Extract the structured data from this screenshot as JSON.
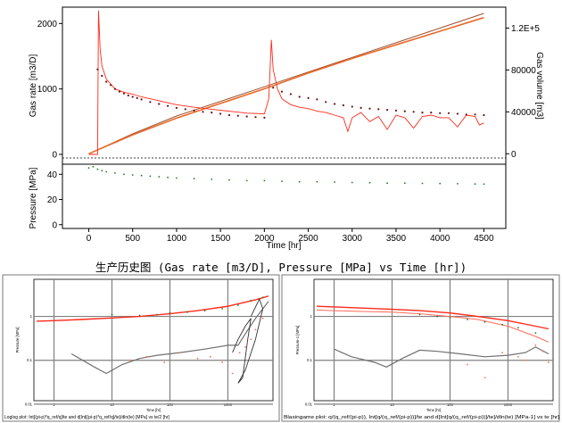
{
  "caption": "生产历史图 (Gas rate [m3/D], Pressure [MPa] vs Time [hr])",
  "colors": {
    "rate_model": "#ff2a1a",
    "rate_points": "#6a1010",
    "volume": "#e86a2a",
    "volume_model": "#a0522d",
    "pressure": "#1b7a2a",
    "derivative": "#ff6a5a",
    "grid": "#808080"
  },
  "chart_data": [
    {
      "type": "line",
      "xlabel": "Time [hr]",
      "ylabel": "Gas rate [m3/D]",
      "y2label": "Gas volume [m3]",
      "xlim": [
        -300,
        4750
      ],
      "ylim": [
        -150,
        2250
      ],
      "y2lim": [
        -10000,
        140000
      ],
      "x_ticks": [
        "0",
        "500",
        "1000",
        "1500",
        "2000",
        "2500",
        "3000",
        "3500",
        "4000",
        "4500"
      ],
      "y_ticks": [
        "0",
        "1000",
        "2000"
      ],
      "y2_ticks": [
        "0",
        "40000",
        "80000",
        "1.2E+5"
      ],
      "series": [
        {
          "role": "rate_model",
          "x": [
            0,
            100,
            110,
            130,
            150,
            200,
            300,
            400,
            500,
            600,
            800,
            1000,
            1200,
            1400,
            1600,
            1800,
            2000,
            2050,
            2080,
            2100,
            2150,
            2200,
            2300,
            2400,
            2500,
            2600,
            2700,
            2800,
            2900,
            2950,
            3000,
            3100,
            3200,
            3300,
            3400,
            3500,
            3600,
            3700,
            3800,
            3900,
            4000,
            4100,
            4200,
            4300,
            4400,
            4450,
            4500
          ],
          "values": [
            0,
            0,
            2200,
            1600,
            1350,
            1150,
            1000,
            950,
            920,
            880,
            820,
            760,
            720,
            690,
            660,
            630,
            620,
            850,
            1750,
            1300,
            1000,
            850,
            760,
            720,
            700,
            660,
            640,
            600,
            560,
            350,
            560,
            640,
            500,
            580,
            380,
            600,
            560,
            400,
            580,
            600,
            560,
            560,
            420,
            600,
            580,
            450,
            480
          ]
        },
        {
          "role": "rate_points",
          "x": [
            100,
            150,
            200,
            250,
            300,
            350,
            400,
            450,
            500,
            550,
            600,
            700,
            800,
            900,
            1000,
            1100,
            1200,
            1300,
            1400,
            1500,
            1600,
            1700,
            1800,
            1900,
            2000,
            2100,
            2200,
            2300,
            2400,
            2500,
            2600,
            2700,
            2800,
            2900,
            3000,
            3100,
            3200,
            3300,
            3400,
            3500,
            3600,
            3700,
            3800,
            3900,
            4000,
            4100,
            4200,
            4300,
            4400,
            4500
          ],
          "values": [
            1300,
            1200,
            1110,
            1060,
            1000,
            960,
            930,
            900,
            880,
            860,
            840,
            800,
            770,
            740,
            710,
            690,
            670,
            650,
            640,
            620,
            600,
            590,
            580,
            570,
            560,
            1020,
            960,
            920,
            880,
            860,
            840,
            800,
            770,
            750,
            730,
            710,
            700,
            690,
            680,
            670,
            660,
            650,
            640,
            640,
            630,
            630,
            620,
            610,
            610,
            600
          ]
        },
        {
          "role": "volume",
          "axis": "y2",
          "x": [
            0,
            500,
            1000,
            1500,
            2000,
            2500,
            3000,
            3500,
            4000,
            4500
          ],
          "values": [
            0,
            18000,
            34000,
            48000,
            62000,
            77000,
            91000,
            104000,
            117000,
            130000
          ]
        },
        {
          "role": "volume_model",
          "axis": "y2",
          "x": [
            0,
            500,
            1000,
            1500,
            2000,
            2500,
            3000,
            3500,
            4000,
            4500
          ],
          "values": [
            0,
            19000,
            36000,
            50000,
            64000,
            78000,
            92000,
            106000,
            120000,
            134000
          ]
        }
      ]
    },
    {
      "type": "scatter",
      "ylabel": "Pressure [MPa]",
      "xlim": [
        -300,
        4750
      ],
      "ylim": [
        -3,
        48
      ],
      "y_ticks": [
        "0",
        "20",
        "40"
      ],
      "series": [
        {
          "role": "pressure",
          "x": [
            0,
            50,
            100,
            150,
            200,
            300,
            400,
            500,
            600,
            700,
            800,
            900,
            1000,
            1200,
            1400,
            1600,
            1800,
            2000,
            2200,
            2400,
            2600,
            2800,
            3000,
            3200,
            3400,
            3600,
            3800,
            4000,
            4200,
            4400,
            4500
          ],
          "values": [
            45,
            46,
            44,
            43,
            42,
            41,
            40,
            39.5,
            39,
            38.5,
            38,
            37.5,
            37,
            36.5,
            36,
            35.5,
            35,
            35,
            34.5,
            34,
            34,
            33.8,
            33.5,
            33.3,
            33,
            33,
            32.8,
            32.6,
            32.5,
            32.3,
            32.2
          ]
        }
      ]
    },
    {
      "type": "line",
      "log_x": true,
      "log_y": true,
      "xlabel": "Time [hr]",
      "ylabel": "Pressure [MPa]",
      "footer": "Loglog plot: Int[(pi-p)*q_ref/q]/te and d[Int[(pi-p)*q_ref/q]/te]/dln(te) [MPa] vs te/2 [hr]",
      "x_ticks": [
        "1",
        "10",
        "100",
        "1000"
      ],
      "y_ticks": [
        "0.01",
        "0.1",
        "1"
      ],
      "xlim": [
        0.45,
        6000
      ],
      "ylim": [
        0.012,
        7
      ],
      "series": [
        {
          "role": "model_upper",
          "x": [
            0.5,
            1,
            3,
            10,
            30,
            100,
            300,
            1000,
            3000,
            5000
          ],
          "values": [
            0.78,
            0.8,
            0.85,
            0.92,
            1.0,
            1.15,
            1.35,
            1.7,
            2.4,
            2.9
          ]
        },
        {
          "role": "points_upper",
          "x": [
            10,
            30,
            60,
            100,
            200,
            400,
            800,
            1500,
            2500,
            4000
          ],
          "values": [
            1.1,
            1.05,
            1.1,
            1.2,
            1.25,
            1.35,
            1.5,
            1.8,
            2.3,
            2.7
          ]
        },
        {
          "role": "derivative_model",
          "x": [
            2,
            5,
            8,
            15,
            30,
            60,
            150,
            400,
            1000,
            1500,
            2000,
            3000,
            5000
          ],
          "values": [
            0.14,
            0.07,
            0.05,
            0.08,
            0.11,
            0.13,
            0.15,
            0.18,
            0.22,
            0.22,
            0.4,
            0.9,
            2.2
          ]
        },
        {
          "role": "derivative_points",
          "x": [
            20,
            40,
            80,
            150,
            300,
            500,
            800,
            1200,
            1600,
            2000,
            2500,
            3000,
            4000
          ],
          "values": [
            0.1,
            0.12,
            0.09,
            0.15,
            0.11,
            0.12,
            0.09,
            0.05,
            0.15,
            0.2,
            0.3,
            0.5,
            0.9
          ]
        },
        {
          "role": "loop",
          "x": [
            1200,
            1500,
            2000,
            2500,
            2200,
            1800,
            1500,
            2000,
            3000,
            4000,
            3500,
            2500
          ],
          "values": [
            0.15,
            0.3,
            0.6,
            0.9,
            0.3,
            0.04,
            0.03,
            0.06,
            0.3,
            1.5,
            2.5,
            1.0
          ]
        }
      ]
    },
    {
      "type": "line",
      "log_x": true,
      "log_y": true,
      "xlabel": "Time [hr]",
      "ylabel": "Pressure-1 [MPa]",
      "footer": "Blasingame plot: q/(q_ref/(pi-p)), Int[q/(q_ref/(pi-p))]/te and d[Int[q/(q_ref/(pi-p))]/te]/dln(te) [MPa-1] vs te [hr]",
      "x_ticks": [
        "1",
        "10",
        "100",
        "1000"
      ],
      "y_ticks": [
        "0.01",
        "0.1",
        "1"
      ],
      "xlim": [
        0.45,
        6000
      ],
      "ylim": [
        0.012,
        7
      ],
      "series": [
        {
          "role": "model_top",
          "x": [
            0.5,
            1,
            3,
            10,
            30,
            100,
            300,
            1000,
            3000,
            5000
          ],
          "values": [
            1.7,
            1.65,
            1.55,
            1.45,
            1.35,
            1.2,
            1.0,
            0.8,
            0.6,
            0.52
          ]
        },
        {
          "role": "model_mid",
          "x": [
            0.5,
            1,
            3,
            10,
            30,
            100,
            300,
            1000,
            3000,
            5000
          ],
          "values": [
            1.4,
            1.35,
            1.3,
            1.25,
            1.15,
            1.0,
            0.85,
            0.6,
            0.35,
            0.26
          ]
        },
        {
          "role": "points_green",
          "x": [
            30,
            60,
            100,
            200,
            400,
            800,
            1500,
            3000
          ],
          "values": [
            1.1,
            1.0,
            0.95,
            0.85,
            0.75,
            0.65,
            0.55,
            0.42
          ]
        },
        {
          "role": "derivative_gray",
          "x": [
            1,
            2,
            5,
            8,
            15,
            30,
            60,
            150,
            400,
            1000,
            2000,
            3000,
            5000
          ],
          "values": [
            0.18,
            0.12,
            0.09,
            0.07,
            0.11,
            0.17,
            0.16,
            0.14,
            0.12,
            0.13,
            0.15,
            0.2,
            0.14
          ]
        },
        {
          "role": "derivative_points",
          "x": [
            200,
            400,
            800,
            1500,
            2000,
            3000,
            4000,
            5000
          ],
          "values": [
            0.08,
            0.04,
            0.15,
            0.12,
            0.1,
            0.22,
            0.16,
            0.09
          ]
        }
      ]
    }
  ]
}
